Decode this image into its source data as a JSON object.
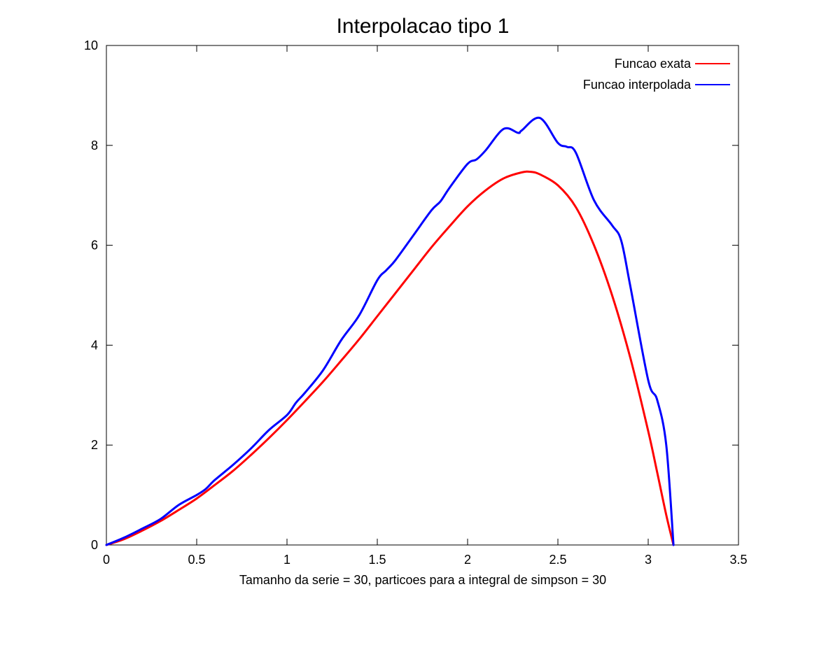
{
  "chart_data": {
    "type": "line",
    "title": "Interpolacao tipo 1",
    "xlabel": "Tamanho da serie = 30, particoes para a integral de simpson = 30",
    "ylabel": "",
    "xlim": [
      0,
      3.5
    ],
    "ylim": [
      0,
      10
    ],
    "xticks": [
      0,
      0.5,
      1,
      1.5,
      2,
      2.5,
      3,
      3.5
    ],
    "xtick_labels": [
      "0",
      "0.5",
      "1",
      "1.5",
      "2",
      "2.5",
      "3",
      "3.5"
    ],
    "yticks": [
      0,
      2,
      4,
      6,
      8,
      10
    ],
    "ytick_labels": [
      "0",
      "2",
      "4",
      "6",
      "8",
      "10"
    ],
    "grid": false,
    "legend_position": "top-right",
    "series": [
      {
        "name": "Funcao exata",
        "color": "#ff0000",
        "x": [
          0,
          0.1,
          0.2,
          0.3,
          0.4,
          0.5,
          0.6,
          0.7,
          0.8,
          0.9,
          1.0,
          1.1,
          1.2,
          1.3,
          1.4,
          1.5,
          1.6,
          1.7,
          1.8,
          1.9,
          2.0,
          2.1,
          2.2,
          2.3,
          2.35,
          2.4,
          2.5,
          2.6,
          2.7,
          2.8,
          2.9,
          3.0,
          3.05,
          3.1,
          3.14
        ],
        "y": [
          0,
          0.12,
          0.29,
          0.48,
          0.7,
          0.93,
          1.2,
          1.48,
          1.8,
          2.14,
          2.5,
          2.88,
          3.27,
          3.69,
          4.12,
          4.58,
          5.04,
          5.5,
          5.96,
          6.38,
          6.78,
          7.1,
          7.34,
          7.46,
          7.47,
          7.42,
          7.2,
          6.76,
          6.0,
          5.0,
          3.76,
          2.28,
          1.45,
          0.6,
          0
        ]
      },
      {
        "name": "Funcao interpolada",
        "color": "#0000ff",
        "x": [
          0,
          0.1,
          0.2,
          0.3,
          0.4,
          0.5,
          0.55,
          0.6,
          0.7,
          0.8,
          0.9,
          1.0,
          1.05,
          1.1,
          1.2,
          1.3,
          1.4,
          1.5,
          1.55,
          1.6,
          1.7,
          1.8,
          1.85,
          1.9,
          2.0,
          2.05,
          2.1,
          2.2,
          2.28,
          2.3,
          2.4,
          2.5,
          2.55,
          2.6,
          2.7,
          2.8,
          2.85,
          2.9,
          3.0,
          3.05,
          3.1,
          3.14
        ],
        "y": [
          0,
          0.15,
          0.33,
          0.52,
          0.8,
          1.0,
          1.12,
          1.3,
          1.6,
          1.93,
          2.3,
          2.6,
          2.85,
          3.05,
          3.5,
          4.1,
          4.6,
          5.3,
          5.5,
          5.7,
          6.2,
          6.7,
          6.88,
          7.15,
          7.63,
          7.72,
          7.9,
          8.33,
          8.25,
          8.3,
          8.55,
          8.05,
          7.97,
          7.85,
          6.9,
          6.4,
          6.1,
          5.2,
          3.3,
          2.9,
          2.0,
          0
        ]
      }
    ]
  }
}
